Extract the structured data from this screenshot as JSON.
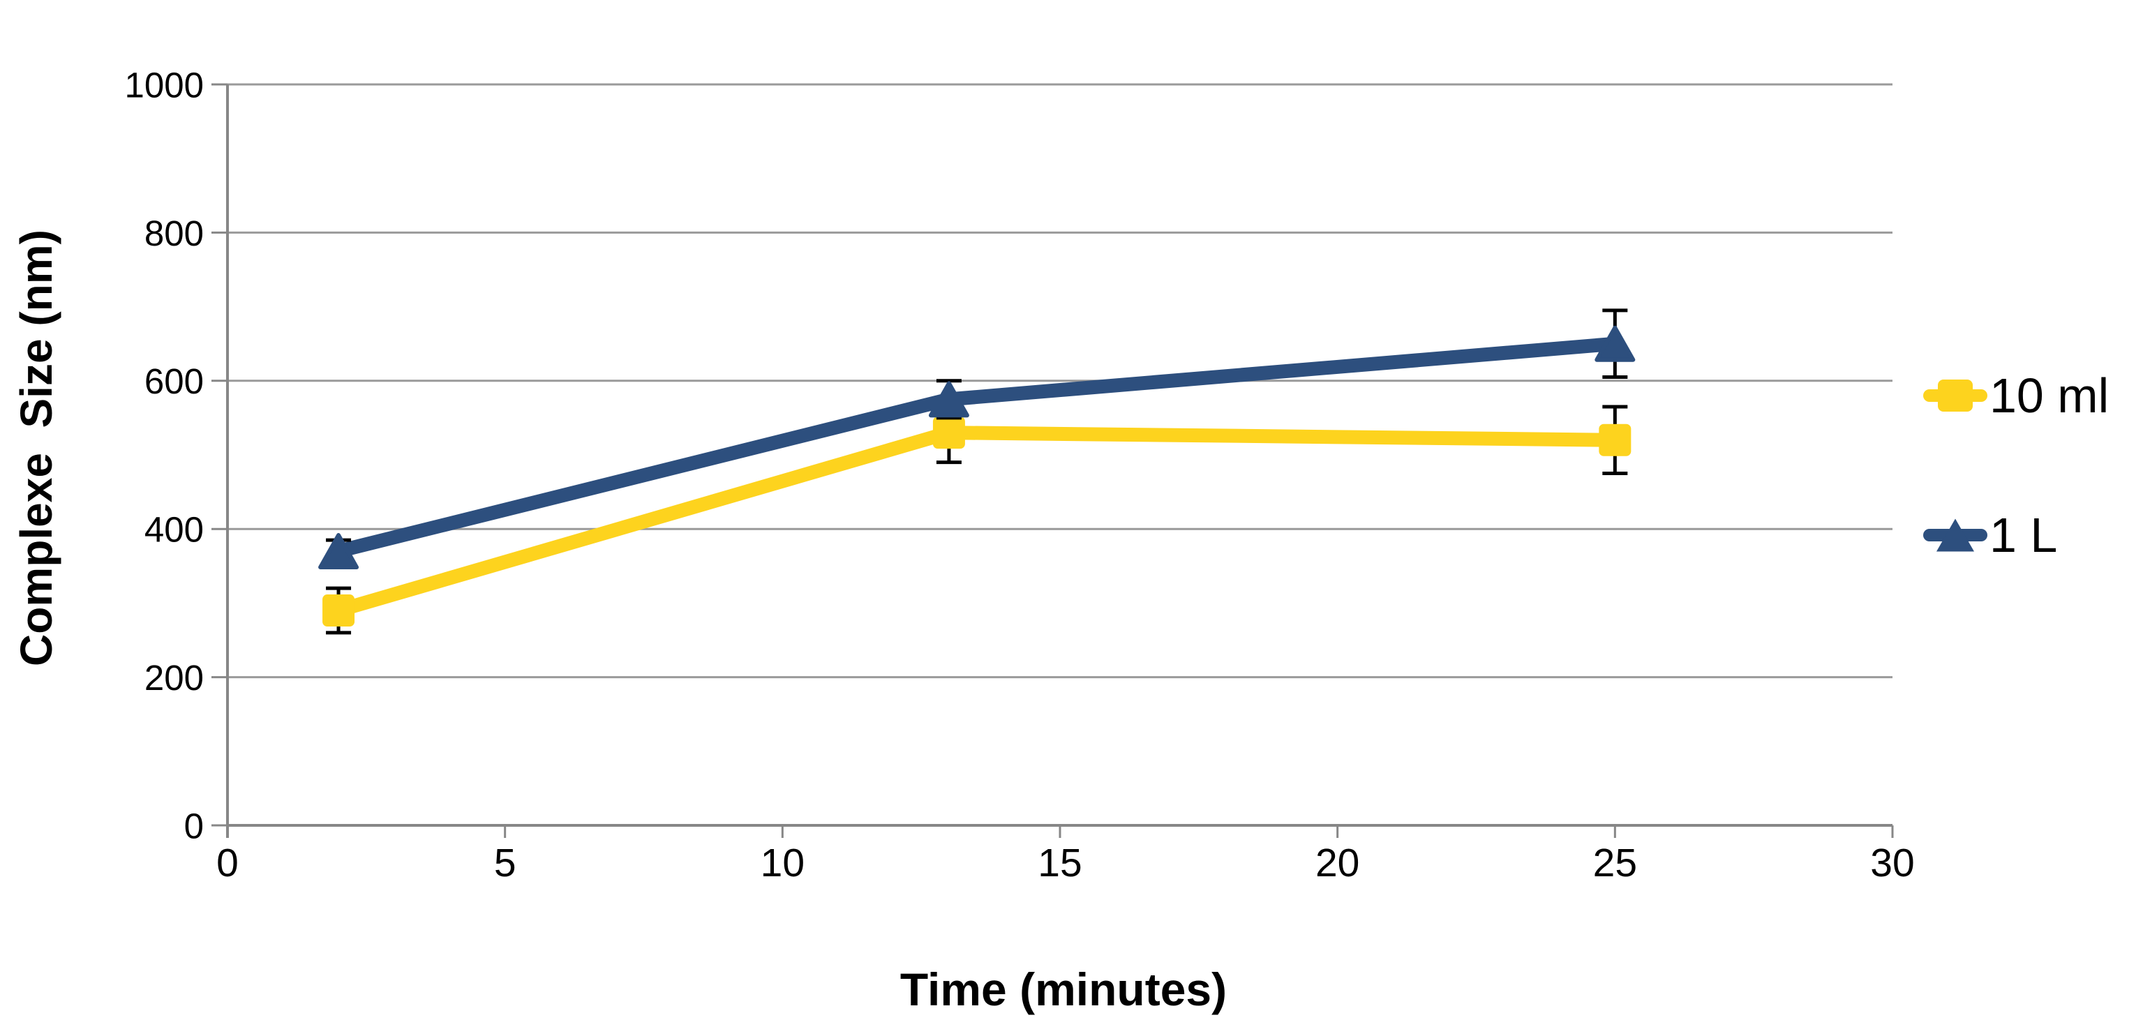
{
  "chart_data": {
    "type": "line",
    "title": "",
    "xlabel": "Time (minutes)",
    "ylabel": "Complexe  Size (nm)",
    "xlim": [
      0,
      30
    ],
    "ylim": [
      0,
      1000
    ],
    "x_ticks": [
      0,
      5,
      10,
      15,
      20,
      25,
      30
    ],
    "y_ticks": [
      0,
      200,
      400,
      600,
      800,
      1000
    ],
    "grid": "horizontal-only",
    "legend_position": "right",
    "series": [
      {
        "name": "10 ml",
        "marker": "square",
        "color": "#FDD31E",
        "x": [
          2,
          13,
          25
        ],
        "y": [
          290,
          530,
          520
        ],
        "y_err": [
          30,
          40,
          45
        ]
      },
      {
        "name": "1 L",
        "marker": "triangle",
        "color": "#2D4F7E",
        "x": [
          2,
          13,
          25
        ],
        "y": [
          370,
          575,
          650
        ],
        "y_err": [
          15,
          25,
          45
        ]
      }
    ]
  },
  "colors": {
    "background": "#ffffff",
    "gridline": "#9A9A9A",
    "axis": "#878787",
    "error_bar": "#000000",
    "text": "#000000"
  }
}
